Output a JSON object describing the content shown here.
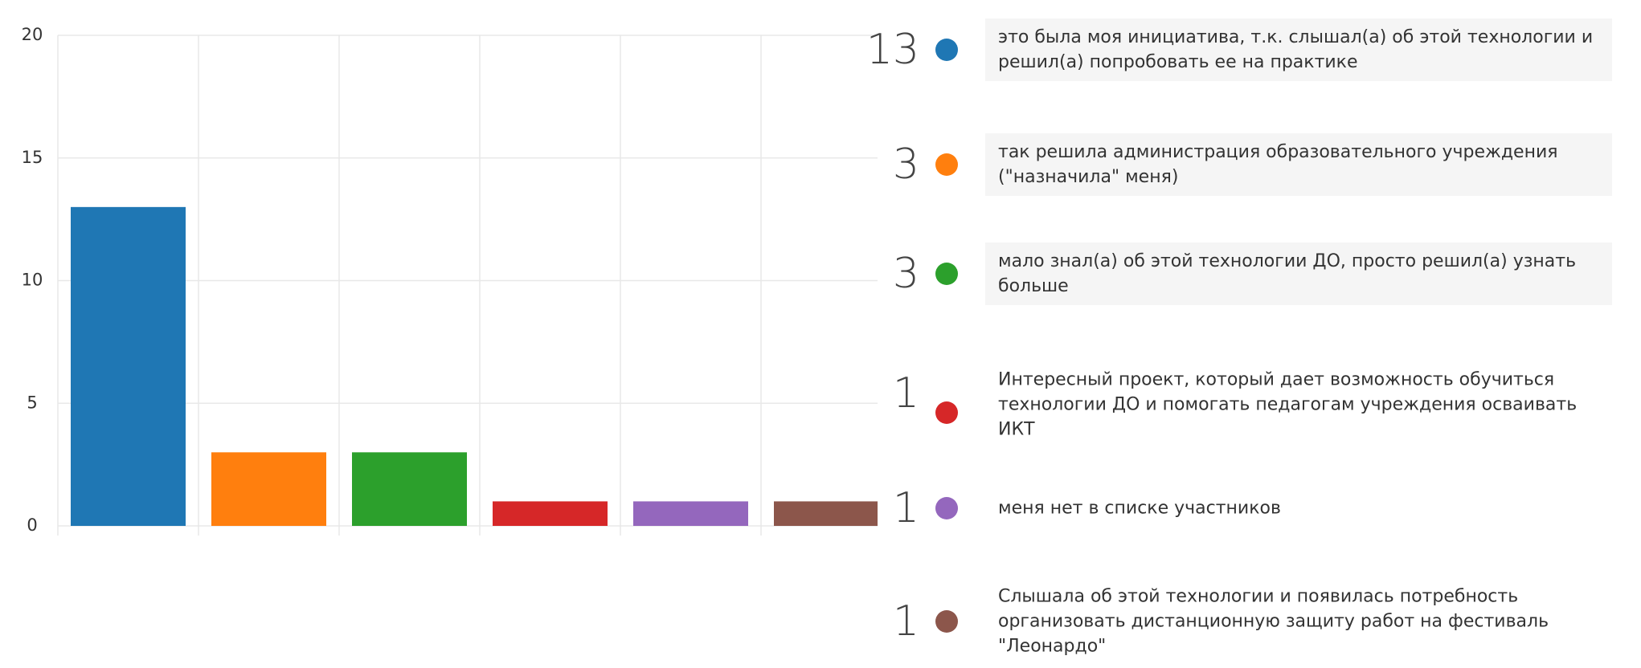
{
  "chart_data": {
    "type": "bar",
    "categories": [
      "это была моя инициатива, т.к. слышал(а) об этой технологии и решил(а) попробовать ее на практике",
      "так решила администрация образовательного учреждения (\"назначила\" меня)",
      "мало знал(а) об этой технологии ДО, просто решил(а) узнать больше",
      "Интересный проект, который дает возможность обучиться технологии ДО и помогать педагогам учреждения осваивать ИКТ",
      "меня нет в списке участников",
      "Слышала об этой технологии и появилась потребность организовать дистанционную защиту работ на фестиваль \"Леонардо\""
    ],
    "values": [
      13,
      3,
      3,
      1,
      1,
      1
    ],
    "colors": [
      "#1f77b4",
      "#ff7f0e",
      "#2ca02c",
      "#d62728",
      "#9467bd",
      "#8c564b"
    ],
    "ylim": [
      0,
      20
    ],
    "yticks": [
      0,
      5,
      10,
      15,
      20
    ],
    "grid": true
  }
}
